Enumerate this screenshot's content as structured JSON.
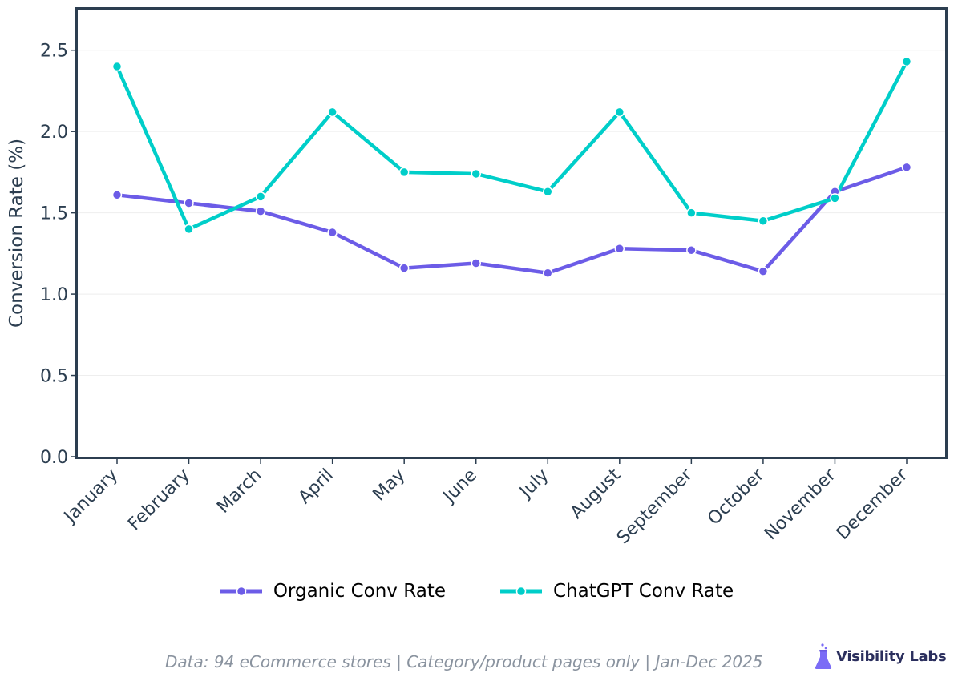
{
  "chart_data": {
    "type": "line",
    "categories": [
      "January",
      "February",
      "March",
      "April",
      "May",
      "June",
      "July",
      "August",
      "September",
      "October",
      "November",
      "December"
    ],
    "series": [
      {
        "name": "Organic Conv Rate",
        "color": "#6c5ce7",
        "values": [
          1.61,
          1.56,
          1.51,
          1.38,
          1.16,
          1.19,
          1.13,
          1.28,
          1.27,
          1.14,
          1.63,
          1.78
        ]
      },
      {
        "name": "ChatGPT Conv Rate",
        "color": "#00cec9",
        "values": [
          2.4,
          1.4,
          1.6,
          2.12,
          1.75,
          1.74,
          1.63,
          2.12,
          1.5,
          1.45,
          1.59,
          2.43
        ]
      }
    ],
    "title": "",
    "xlabel": "",
    "ylabel": "Conversion Rate (%)",
    "ylim": [
      0,
      2.75
    ],
    "yticks": [
      "0.0",
      "0.5",
      "1.0",
      "1.5",
      "2.0",
      "2.5"
    ],
    "grid": "horizontal",
    "legend_position": "bottom-center"
  },
  "footer": {
    "note": "Data: 94 eCommerce stores | Category/product pages only | Jan-Dec 2025",
    "brand": "Visibility Labs",
    "brand_icon": "flask-icon",
    "brand_color": "#7b6cf6"
  }
}
